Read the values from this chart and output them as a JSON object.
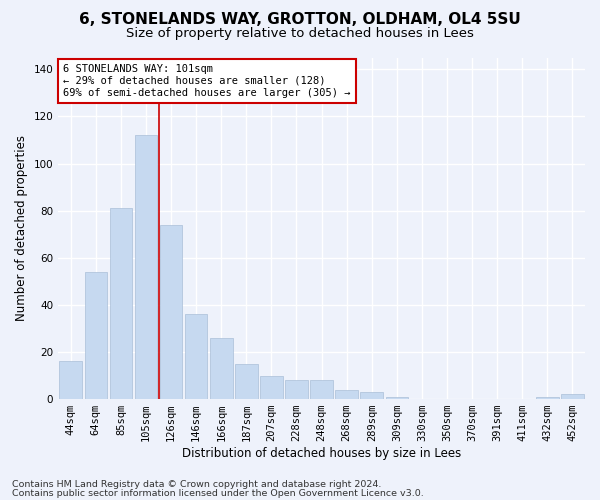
{
  "title": "6, STONELANDS WAY, GROTTON, OLDHAM, OL4 5SU",
  "subtitle": "Size of property relative to detached houses in Lees",
  "xlabel": "Distribution of detached houses by size in Lees",
  "ylabel": "Number of detached properties",
  "categories": [
    "44sqm",
    "64sqm",
    "85sqm",
    "105sqm",
    "126sqm",
    "146sqm",
    "166sqm",
    "187sqm",
    "207sqm",
    "228sqm",
    "248sqm",
    "268sqm",
    "289sqm",
    "309sqm",
    "330sqm",
    "350sqm",
    "370sqm",
    "391sqm",
    "411sqm",
    "432sqm",
    "452sqm"
  ],
  "values": [
    16,
    54,
    81,
    112,
    74,
    36,
    26,
    15,
    10,
    8,
    8,
    4,
    3,
    1,
    0,
    0,
    0,
    0,
    0,
    1,
    2
  ],
  "bar_color": "#c6d9f0",
  "bar_edge_color": "#aabfd8",
  "vline_x": 3.5,
  "vline_color": "#cc0000",
  "annotation_text": "6 STONELANDS WAY: 101sqm\n← 29% of detached houses are smaller (128)\n69% of semi-detached houses are larger (305) →",
  "annotation_box_color": "#ffffff",
  "annotation_box_edge": "#cc0000",
  "ylim": [
    0,
    145
  ],
  "yticks": [
    0,
    20,
    40,
    60,
    80,
    100,
    120,
    140
  ],
  "footer_line1": "Contains HM Land Registry data © Crown copyright and database right 2024.",
  "footer_line2": "Contains public sector information licensed under the Open Government Licence v3.0.",
  "background_color": "#eef2fb",
  "grid_color": "#ffffff",
  "title_fontsize": 11,
  "subtitle_fontsize": 9.5,
  "axis_label_fontsize": 8.5,
  "tick_fontsize": 7.5,
  "annotation_fontsize": 7.5,
  "footer_fontsize": 6.8
}
